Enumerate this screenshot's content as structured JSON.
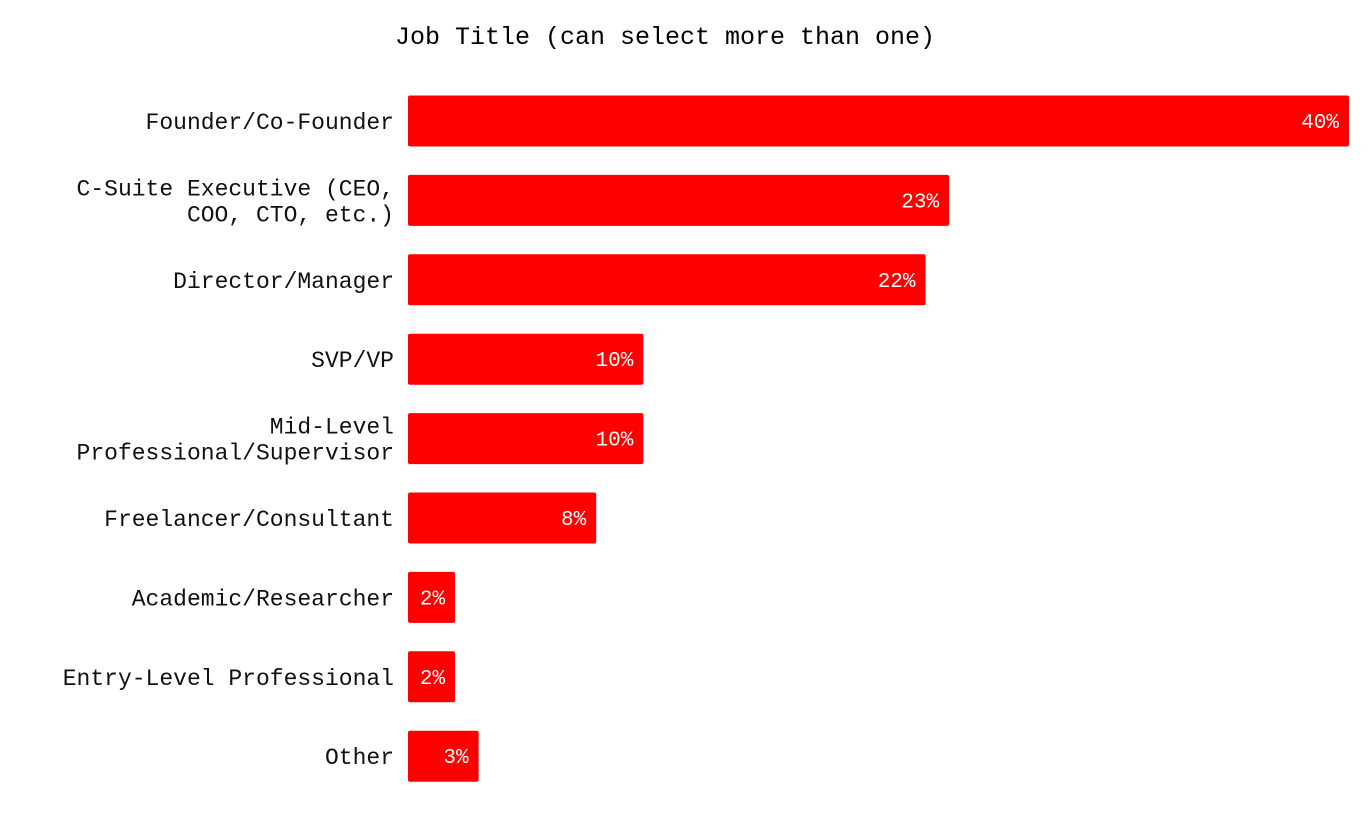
{
  "chart_data": {
    "type": "bar",
    "orientation": "horizontal",
    "title": "Job Title (can select more than one)",
    "xlabel": "",
    "ylabel": "",
    "categories": [
      [
        "Founder/Co-Founder"
      ],
      [
        "C-Suite Executive (CEO,",
        "COO, CTO, etc.)"
      ],
      [
        "Director/Manager"
      ],
      [
        "SVP/VP"
      ],
      [
        "Mid-Level",
        "Professional/Supervisor"
      ],
      [
        "Freelancer/Consultant"
      ],
      [
        "Academic/Researcher"
      ],
      [
        "Entry-Level Professional"
      ],
      [
        "Other"
      ]
    ],
    "values": [
      40,
      23,
      22,
      10,
      10,
      8,
      2,
      2,
      3
    ],
    "value_labels": [
      "40%",
      "23%",
      "22%",
      "10%",
      "10%",
      "8%",
      "2%",
      "2%",
      "3%"
    ],
    "xlim": [
      0,
      40
    ],
    "grid": false,
    "legend": "none",
    "bar_color": "#ff0000",
    "value_label_color": "#ffffff"
  }
}
